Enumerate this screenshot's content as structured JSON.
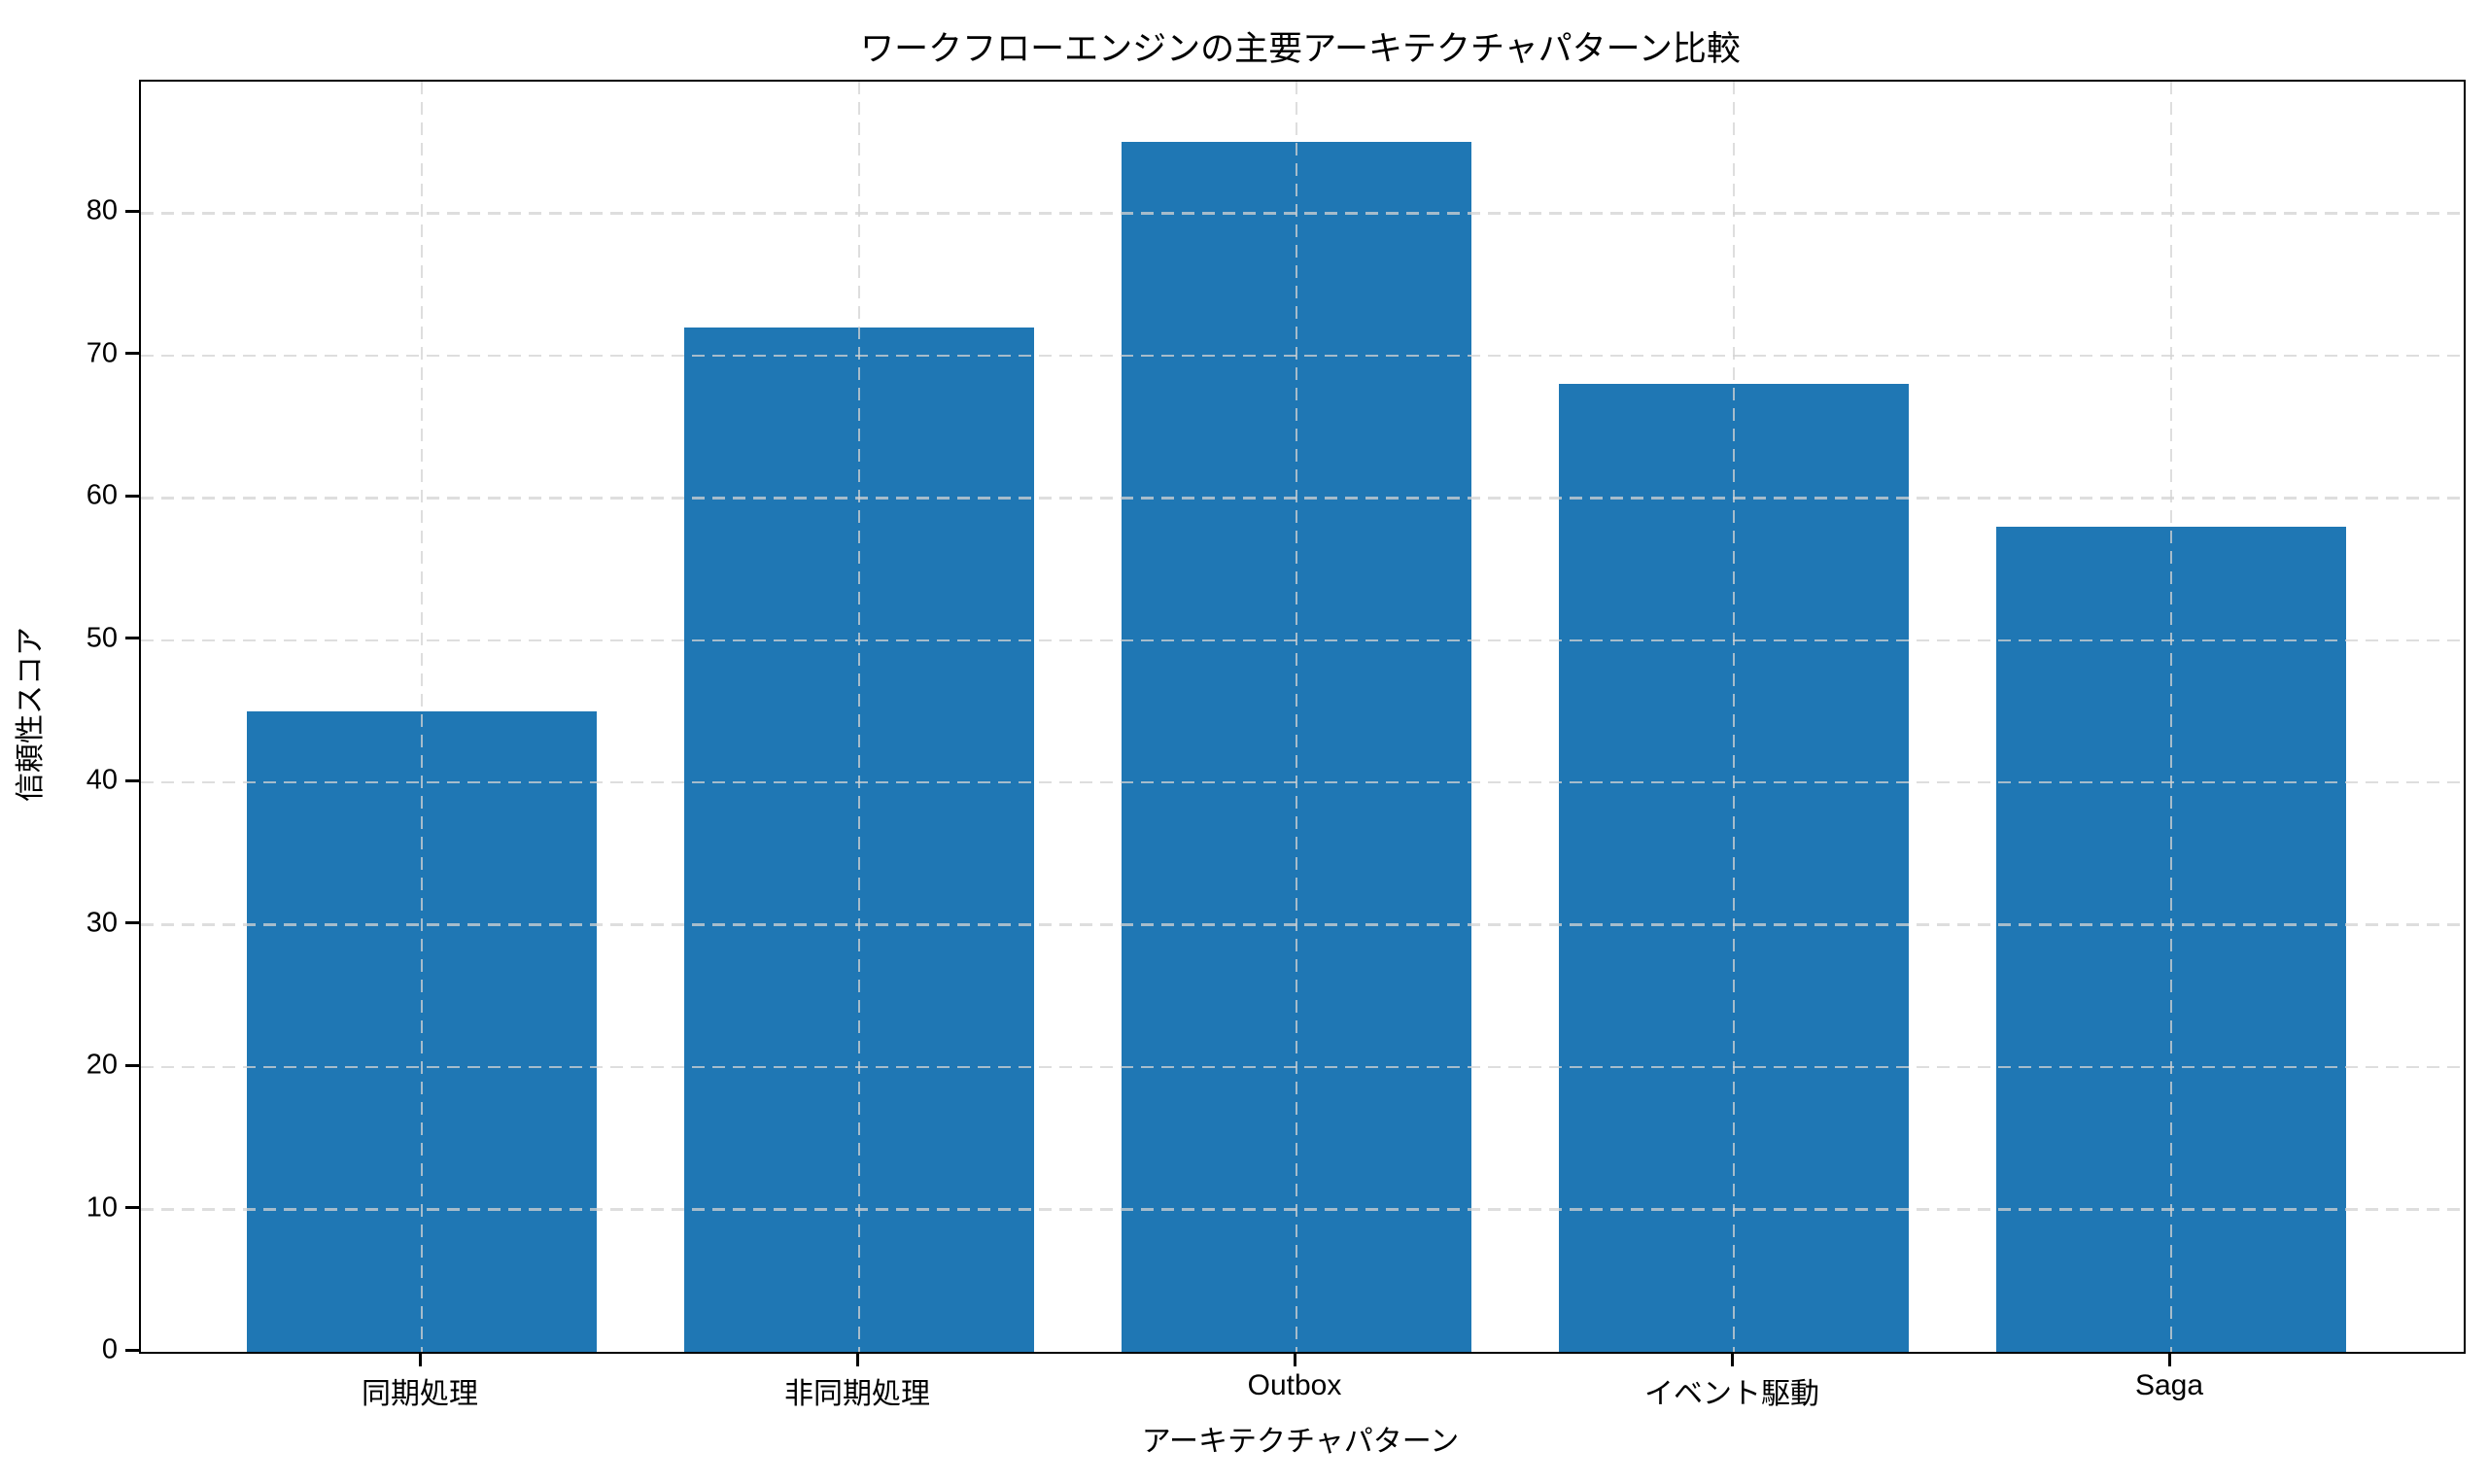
{
  "chart_data": {
    "type": "bar",
    "title": "ワークフローエンジンの主要アーキテクチャパターン比較",
    "xlabel": "アーキテクチャパターン",
    "ylabel": "信頼性スコア",
    "categories": [
      "同期処理",
      "非同期処理",
      "Outbox",
      "イベント駆動",
      "Saga"
    ],
    "values": [
      45,
      72,
      85,
      68,
      58
    ],
    "yticks": [
      0,
      10,
      20,
      30,
      40,
      50,
      60,
      70,
      80
    ],
    "ylim": [
      0,
      89.25
    ],
    "bar_color": "#1f77b4",
    "grid": "dashed gridlines on both axes, light gray, drawn over bars with transparency",
    "legend": "none",
    "background_color": "#ffffff",
    "spine_color": "#000000"
  }
}
